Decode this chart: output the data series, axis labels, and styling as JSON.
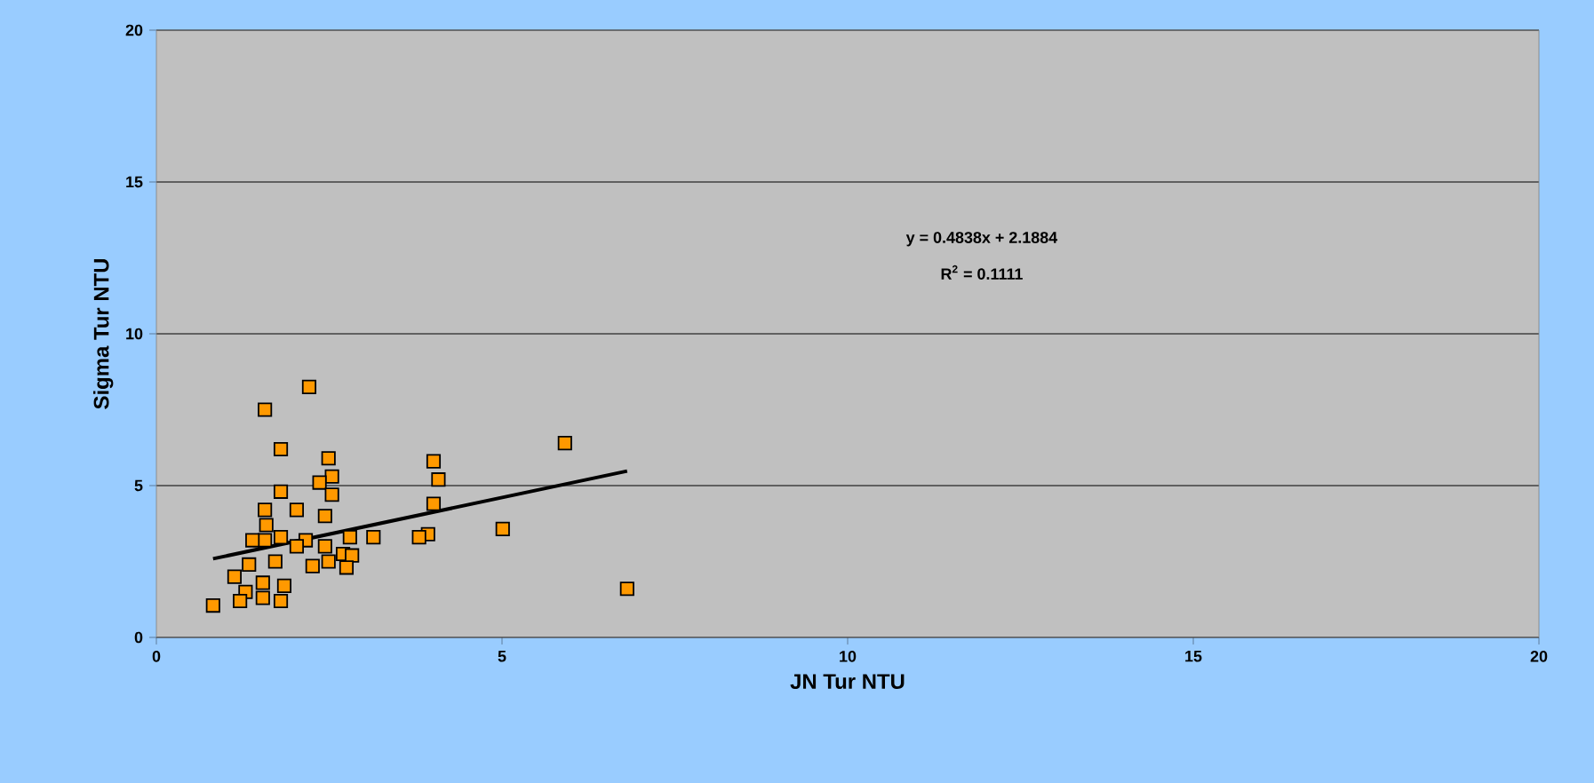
{
  "chart_data": {
    "type": "scatter",
    "xlabel": "JN Tur  NTU",
    "ylabel": "Sigma Tur  NTU",
    "xlim": [
      0,
      20
    ],
    "ylim": [
      0,
      20
    ],
    "xticks": [
      0,
      5,
      10,
      15,
      20
    ],
    "yticks": [
      0,
      5,
      10,
      15,
      20
    ],
    "grid": "y",
    "marker": "square",
    "annotations": [
      "y = 0.4838x + 2.1884",
      "R$^{2}$ = 0.1111"
    ],
    "series": [
      {
        "color": "#ff9900",
        "x": [
          2.21,
          1.57,
          1.8,
          2.49,
          2.54,
          2.36,
          2.54,
          1.8,
          1.57,
          2.03,
          2.44,
          4.01,
          4.08,
          4.01,
          3.93,
          3.8,
          3.14,
          2.8,
          2.7,
          2.83,
          2.75,
          2.49,
          2.26,
          1.72,
          1.34,
          1.13,
          1.29,
          1.21,
          0.82,
          1.54,
          1.85,
          1.8,
          1.54,
          1.57,
          1.39,
          1.8,
          2.16,
          2.44,
          1.59,
          2.03,
          5.01,
          5.91,
          6.81
        ],
        "values": [
          8.25,
          7.5,
          6.2,
          5.9,
          5.3,
          5.1,
          4.7,
          4.8,
          4.2,
          4.2,
          4.0,
          5.8,
          5.2,
          4.4,
          3.4,
          3.3,
          3.3,
          3.3,
          2.75,
          2.7,
          2.3,
          2.5,
          2.35,
          2.5,
          2.4,
          2.0,
          1.5,
          1.2,
          1.05,
          1.8,
          1.7,
          1.2,
          1.3,
          3.2,
          3.2,
          3.3,
          3.2,
          3.0,
          3.7,
          3.0,
          3.57,
          6.4,
          1.6
        ]
      },
      {
        "type": "line",
        "color": "#000000",
        "marker": "none",
        "x": [
          0.82,
          6.81
        ],
        "values": [
          2.59,
          5.48
        ]
      }
    ]
  }
}
